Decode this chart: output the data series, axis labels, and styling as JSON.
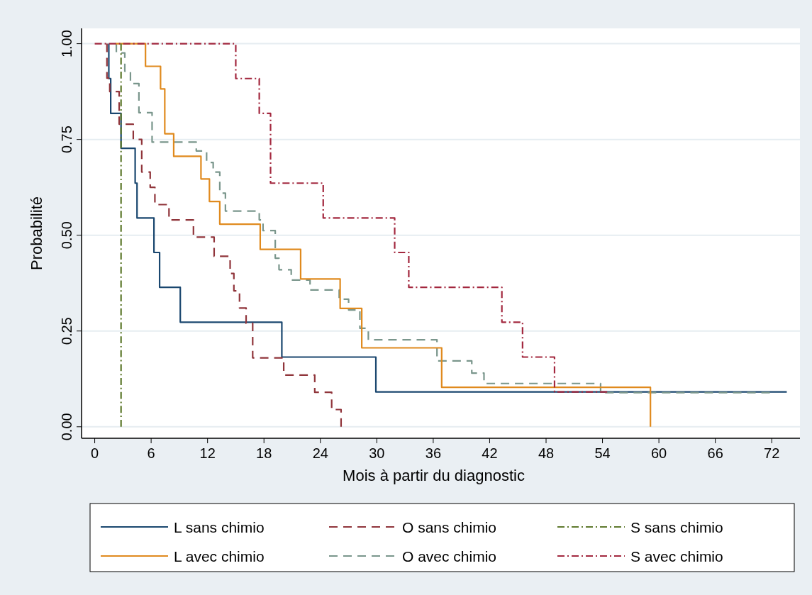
{
  "chart_data": {
    "type": "step",
    "xlabel": "Mois à partir du diagnostic",
    "ylabel": "Probabilité",
    "xlim": [
      -1.4,
      75
    ],
    "xticks": [
      0,
      6,
      12,
      18,
      24,
      30,
      36,
      42,
      48,
      54,
      60,
      66,
      72
    ],
    "ylim": [
      -0.03,
      1.04
    ],
    "yticks": [
      {
        "value": 0,
        "label": "0.00"
      },
      {
        "value": 0.25,
        "label": "0.25"
      },
      {
        "value": 0.5,
        "label": "0.50"
      },
      {
        "value": 0.75,
        "label": "0.75"
      },
      {
        "value": 1,
        "label": "1.00"
      }
    ],
    "grid": "y",
    "legend": "bottom",
    "series": [
      {
        "name": "L sans chimio",
        "color": "#1a476f",
        "line_style": "solid",
        "x": [
          1.5,
          1.5,
          1.7,
          2.8,
          4.3,
          4.5,
          6.3,
          6.9,
          9.1,
          19.9,
          29.9,
          73.6
        ],
        "values": [
          1,
          0.909,
          0.818,
          0.727,
          0.636,
          0.545,
          0.455,
          0.364,
          0.273,
          0.182,
          0.091,
          0.091
        ]
      },
      {
        "name": "L avec chimio",
        "color": "#e08a1e",
        "line_style": "solid",
        "x": [
          2.2,
          5.4,
          7.0,
          7.45,
          8.4,
          11.3,
          12.2,
          13.3,
          17.6,
          21.9,
          26.1,
          28.4,
          36.9,
          59.1
        ],
        "values": [
          1,
          0.941,
          0.882,
          0.765,
          0.706,
          0.647,
          0.588,
          0.529,
          0.463,
          0.386,
          0.309,
          0.206,
          0.103,
          0
        ]
      },
      {
        "name": "O sans chimio",
        "color": "#90353b",
        "line_style": "dashed",
        "x": [
          1.3,
          1.3,
          1.6,
          2.6,
          4.1,
          5.0,
          5.9,
          6.4,
          7.9,
          10.5,
          12.7,
          14.4,
          14.8,
          15.4,
          16.1,
          16.8,
          20.1,
          23.4,
          25.2,
          26.2
        ],
        "values": [
          1,
          0.91,
          0.875,
          0.79,
          0.75,
          0.665,
          0.625,
          0.58,
          0.54,
          0.495,
          0.445,
          0.4,
          0.355,
          0.31,
          0.27,
          0.18,
          0.135,
          0.09,
          0.045,
          0
        ]
      },
      {
        "name": "O avec chimio",
        "color": "#7a968c",
        "line_style": "dashed",
        "x": [
          2.3,
          2.3,
          3.2,
          3.8,
          4.7,
          6.1,
          10.8,
          11.9,
          12.6,
          13.3,
          13.9,
          17.5,
          17.9,
          19.2,
          19.6,
          20.9,
          22.9,
          26.0,
          27.0,
          28.2,
          29.1,
          36.4,
          40.1,
          41.4,
          53.8,
          71.8
        ],
        "values": [
          1,
          0.976,
          0.928,
          0.896,
          0.82,
          0.743,
          0.72,
          0.69,
          0.665,
          0.61,
          0.563,
          0.54,
          0.512,
          0.44,
          0.41,
          0.383,
          0.357,
          0.333,
          0.305,
          0.257,
          0.227,
          0.172,
          0.14,
          0.113,
          0.089,
          0.089
        ]
      },
      {
        "name": "S sans chimio",
        "color": "#5f7a2e",
        "line_style": "dashdot",
        "x": [
          2.8,
          2.8
        ],
        "values": [
          1,
          0
        ]
      },
      {
        "name": "S avec chimio",
        "color": "#a3283f",
        "line_style": "dashdot",
        "x": [
          0,
          15,
          17.5,
          18.7,
          24.3,
          31.9,
          33.4,
          43.3,
          45.5,
          48.9,
          54.5
        ],
        "values": [
          1,
          0.909,
          0.818,
          0.636,
          0.545,
          0.455,
          0.364,
          0.273,
          0.182,
          0.091,
          0.091
        ]
      }
    ]
  }
}
